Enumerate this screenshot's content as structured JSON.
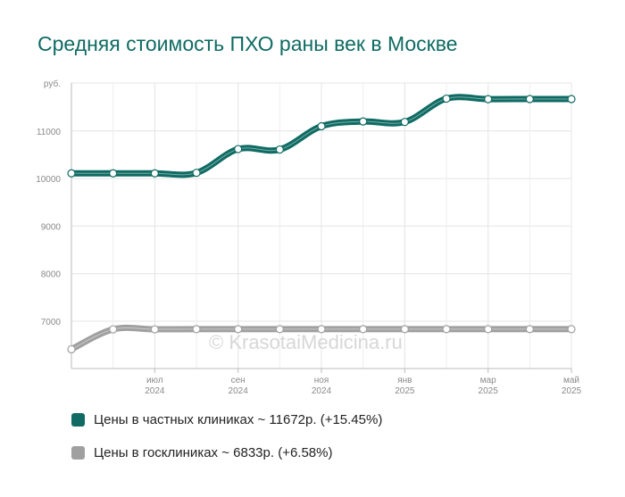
{
  "chart_data": {
    "type": "line",
    "title": "Средняя стоимость ПХО раны век в Москве",
    "ylabel": "руб.",
    "yticks": [
      7000,
      8000,
      9000,
      10000,
      11000
    ],
    "ylim": [
      6000,
      12000
    ],
    "x": [
      "2024-05",
      "2024-06",
      "2024-07",
      "2024-08",
      "2024-09",
      "2024-10",
      "2024-11",
      "2024-12",
      "2025-01",
      "2025-02",
      "2025-03",
      "2025-04",
      "2025-05"
    ],
    "xtick_labels": [
      {
        "month": "июл",
        "year": "2024"
      },
      {
        "month": "сен",
        "year": "2024"
      },
      {
        "month": "ноя",
        "year": "2024"
      },
      {
        "month": "янв",
        "year": "2025"
      },
      {
        "month": "мар",
        "year": "2025"
      },
      {
        "month": "май",
        "year": "2025"
      }
    ],
    "series": [
      {
        "name": "Цены в частных клиниках",
        "color": "#0f6b63",
        "values": [
          10110,
          10110,
          10110,
          10120,
          10620,
          10610,
          11100,
          11200,
          11190,
          11680,
          11670,
          11672,
          11672
        ]
      },
      {
        "name": "Цены в госклиниках",
        "color": "#a0a0a0",
        "values": [
          6410,
          6830,
          6830,
          6833,
          6833,
          6833,
          6833,
          6833,
          6833,
          6833,
          6833,
          6833,
          6833
        ]
      }
    ],
    "grid": true,
    "legend_position": "bottom-left"
  },
  "legend": {
    "private": "Цены в частных клиниках ~ 11672р. (+15.45%)",
    "public": "Цены в госклиниках ~ 6833р. (+6.58%)"
  },
  "watermark": "© KrasotaiMedicina.ru"
}
